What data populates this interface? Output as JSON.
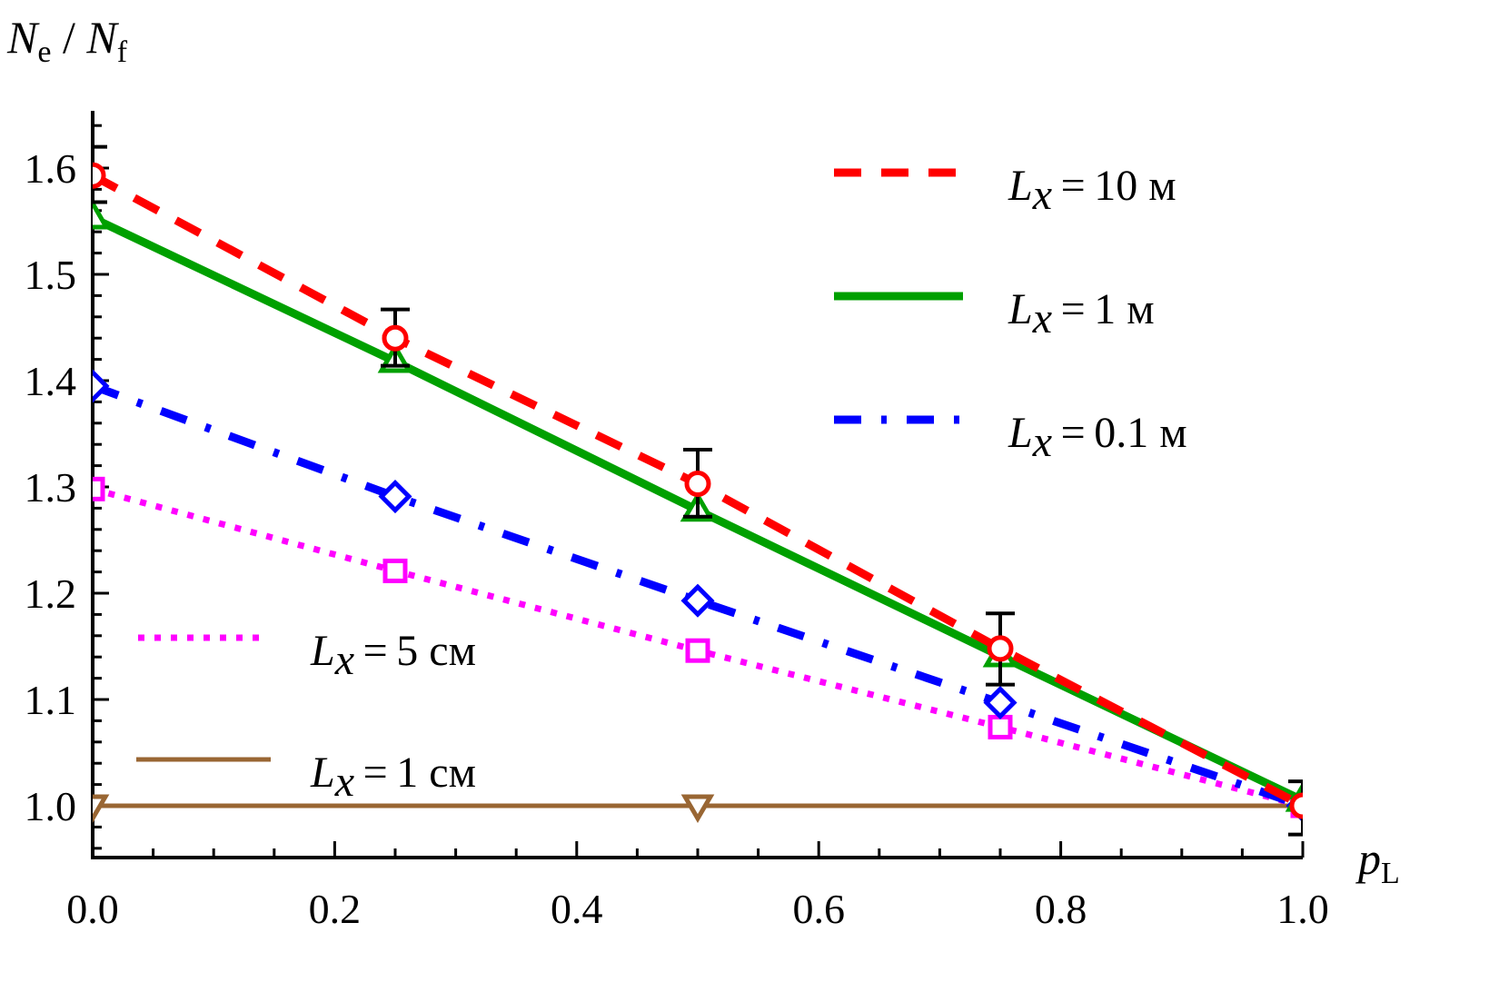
{
  "chart_data": {
    "type": "line",
    "ylabel": {
      "main": "N",
      "sub1": "e",
      "sep": " / ",
      "main2": "N",
      "sub2": "f"
    },
    "xlabel": {
      "main": "p",
      "sub": "L"
    },
    "xlim": [
      0,
      1.0
    ],
    "ylim": [
      0.95,
      1.65
    ],
    "xticks": [
      "0.0",
      "0.2",
      "0.4",
      "0.6",
      "0.8",
      "1.0"
    ],
    "yticks": [
      "1.0",
      "1.1",
      "1.2",
      "1.3",
      "1.4",
      "1.5",
      "1.6"
    ],
    "grid": false,
    "legend_placement": "top-right and bottom-left",
    "series": [
      {
        "name": "Lx = 10 м",
        "color": "#ff0000",
        "dash": "dashed",
        "marker": "circle",
        "x": [
          0,
          0.25,
          0.5,
          0.75,
          1.0
        ],
        "y": [
          1.593,
          1.44,
          1.303,
          1.148,
          1.0
        ],
        "error_low": [
          1.568,
          1.414,
          1.272,
          1.114,
          0.973
        ],
        "error_high": [
          1.62,
          1.467,
          1.335,
          1.181,
          1.023
        ]
      },
      {
        "name": "Lx = 1 м",
        "color": "#00a000",
        "dash": "solid",
        "marker": "triangle-up",
        "x": [
          0,
          0.25,
          0.5,
          0.75,
          1.0
        ],
        "y": [
          1.553,
          1.418,
          1.278,
          1.141,
          1.005
        ]
      },
      {
        "name": "Lx = 0.1 м",
        "color": "#0000ff",
        "dash": "dashdot",
        "marker": "diamond",
        "x": [
          0,
          0.25,
          0.5,
          0.75,
          1.0
        ],
        "y": [
          1.395,
          1.291,
          1.193,
          1.097,
          1.0
        ]
      },
      {
        "name": "Lx = 5 см",
        "color": "#ff00ff",
        "dash": "dotted",
        "marker": "square",
        "x": [
          0,
          0.25,
          0.5,
          0.75,
          1.0
        ],
        "y": [
          1.298,
          1.221,
          1.146,
          1.074,
          1.0
        ]
      },
      {
        "name": "Lx = 1 см",
        "color": "#996633",
        "dash": "solid-thin",
        "marker": "triangle-down",
        "x": [
          0,
          0.5,
          1.0
        ],
        "y": [
          1.0,
          1.0,
          1.0
        ]
      }
    ]
  }
}
